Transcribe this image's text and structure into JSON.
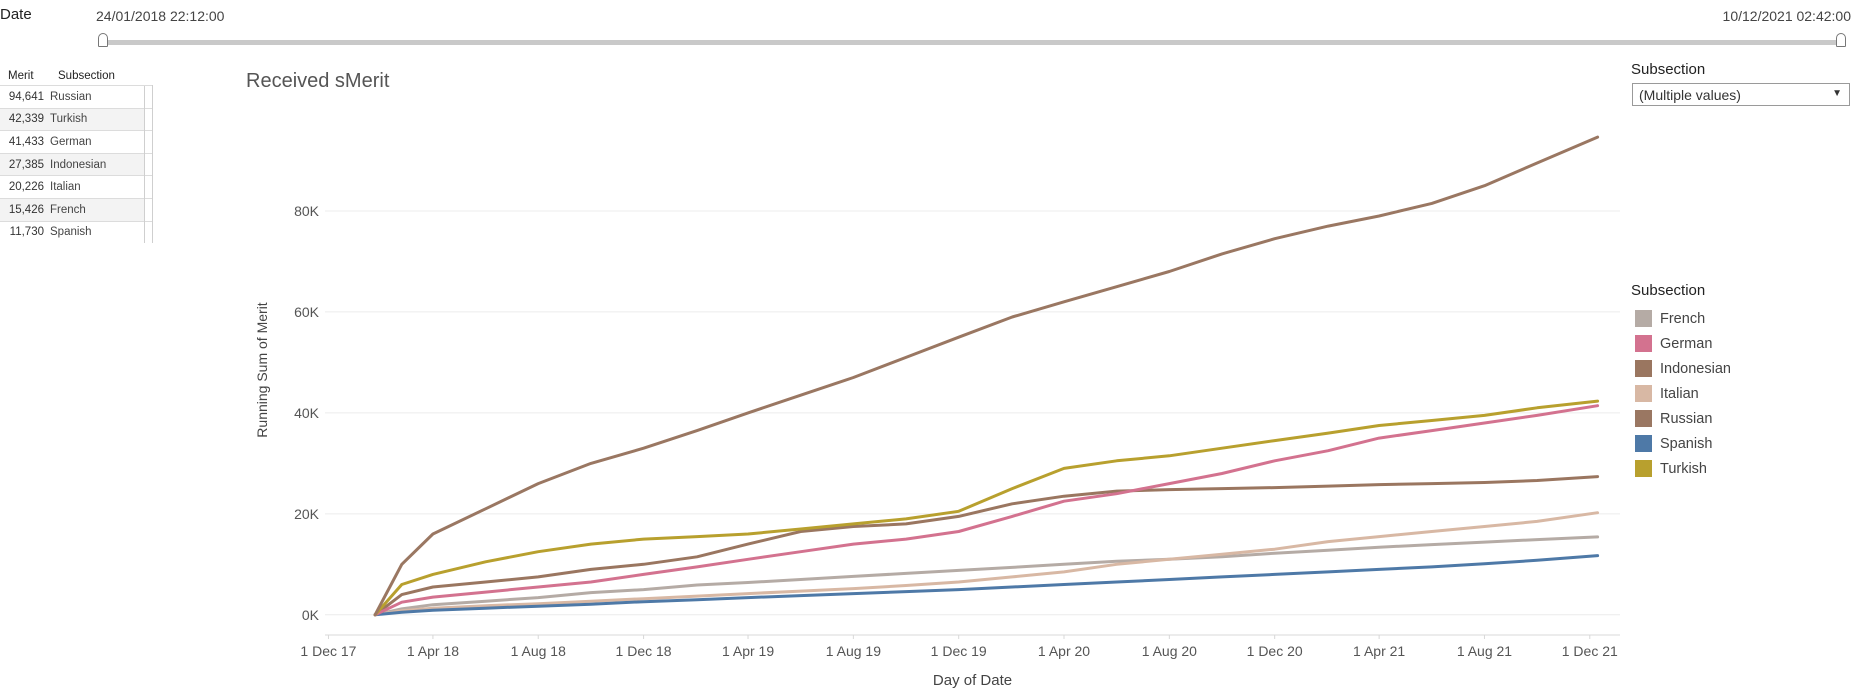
{
  "date_filter": {
    "label": "Date",
    "start": "24/01/2018 22:12:00",
    "end": "10/12/2021 02:42:00"
  },
  "merit_table": {
    "headers": [
      "Merit",
      "Subsection"
    ],
    "rows": [
      {
        "merit": "94,641",
        "subsection": "Russian"
      },
      {
        "merit": "42,339",
        "subsection": "Turkish"
      },
      {
        "merit": "41,433",
        "subsection": "German"
      },
      {
        "merit": "27,385",
        "subsection": "Indonesian"
      },
      {
        "merit": "20,226",
        "subsection": "Italian"
      },
      {
        "merit": "15,426",
        "subsection": "French"
      },
      {
        "merit": "11,730",
        "subsection": "Spanish"
      }
    ]
  },
  "subsection_filter": {
    "label": "Subsection",
    "value": "(Multiple values)"
  },
  "chart_data": {
    "type": "line",
    "title": "Received sMerit",
    "xlabel": "Day of Date",
    "ylabel": "Running Sum of Merit",
    "x_ticks": [
      "1 Dec 17",
      "1 Apr 18",
      "1 Aug 18",
      "1 Dec 18",
      "1 Apr 19",
      "1 Aug 19",
      "1 Dec 19",
      "1 Apr 20",
      "1 Aug 20",
      "1 Dec 20",
      "1 Apr 21",
      "1 Aug 21",
      "1 Dec 21"
    ],
    "y_ticks": [
      "0K",
      "20K",
      "40K",
      "60K",
      "80K"
    ],
    "y_tick_values": [
      0,
      20000,
      40000,
      60000,
      80000
    ],
    "ylim": [
      -4000,
      100000
    ],
    "x_dates": [
      "2018-01-24",
      "2018-02-24",
      "2018-04-01",
      "2018-06-01",
      "2018-08-01",
      "2018-10-01",
      "2018-12-01",
      "2019-02-01",
      "2019-04-01",
      "2019-06-01",
      "2019-08-01",
      "2019-10-01",
      "2019-12-01",
      "2020-02-01",
      "2020-04-01",
      "2020-06-01",
      "2020-08-01",
      "2020-10-01",
      "2020-12-01",
      "2021-02-01",
      "2021-04-01",
      "2021-06-01",
      "2021-08-01",
      "2021-10-01",
      "2021-12-10"
    ],
    "grid": true,
    "legend_title": "Subsection",
    "legend_position": "right",
    "series": [
      {
        "name": "French",
        "color": "#b5aba5",
        "values": [
          0,
          1200,
          2000,
          2700,
          3400,
          4400,
          5000,
          5900,
          6400,
          7000,
          7600,
          8200,
          8800,
          9400,
          10000,
          10600,
          11000,
          11500,
          12200,
          12800,
          13400,
          13900,
          14400,
          14900,
          15426
        ]
      },
      {
        "name": "German",
        "color": "#d3728f",
        "values": [
          0,
          2500,
          3500,
          4500,
          5500,
          6500,
          8000,
          9500,
          11000,
          12500,
          14000,
          15000,
          16500,
          19500,
          22500,
          24000,
          26000,
          28000,
          30500,
          32500,
          35000,
          36500,
          38000,
          39500,
          41433
        ]
      },
      {
        "name": "Indonesian",
        "color": "#9a7660",
        "values": [
          0,
          4000,
          5500,
          6500,
          7500,
          9000,
          10000,
          11500,
          14000,
          16500,
          17500,
          18000,
          19500,
          22000,
          23500,
          24500,
          24800,
          25000,
          25200,
          25500,
          25800,
          26000,
          26200,
          26600,
          27385
        ]
      },
      {
        "name": "Italian",
        "color": "#d8b8a4",
        "values": [
          0,
          800,
          1300,
          1800,
          2200,
          2700,
          3200,
          3700,
          4200,
          4700,
          5200,
          5800,
          6500,
          7500,
          8500,
          10000,
          11000,
          12000,
          13000,
          14500,
          15500,
          16500,
          17500,
          18500,
          20226
        ]
      },
      {
        "name": "Russian",
        "color": "#9a7762",
        "values": [
          0,
          10000,
          16000,
          21000,
          26000,
          30000,
          33000,
          36500,
          40000,
          43500,
          47000,
          51000,
          55000,
          59000,
          62000,
          65000,
          68000,
          71500,
          74500,
          77000,
          79000,
          81500,
          85000,
          89500,
          94641
        ]
      },
      {
        "name": "Spanish",
        "color": "#4e79a7",
        "values": [
          0,
          500,
          900,
          1300,
          1700,
          2100,
          2600,
          3000,
          3400,
          3800,
          4200,
          4600,
          5000,
          5500,
          6000,
          6500,
          7000,
          7500,
          8000,
          8500,
          9000,
          9500,
          10100,
          10800,
          11730
        ]
      },
      {
        "name": "Turkish",
        "color": "#b8a02e",
        "values": [
          0,
          6000,
          8000,
          10500,
          12500,
          14000,
          15000,
          15500,
          16000,
          17000,
          18000,
          19000,
          20500,
          25000,
          29000,
          30500,
          31500,
          33000,
          34500,
          36000,
          37500,
          38500,
          39500,
          41000,
          42339
        ]
      }
    ]
  }
}
